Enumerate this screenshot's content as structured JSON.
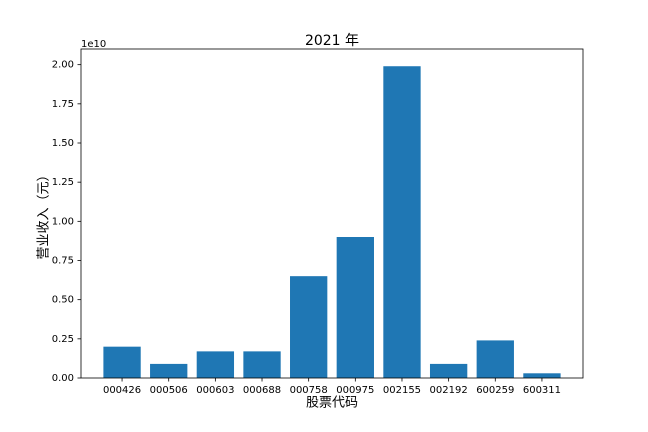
{
  "chart_data": {
    "type": "bar",
    "title": "2021 年",
    "x_label": "股票代码",
    "y_label": "营业收入（元）",
    "y_offset_label": "1e10",
    "categories": [
      "000426",
      "000506",
      "000603",
      "000688",
      "000758",
      "000975",
      "002155",
      "002192",
      "600259",
      "600311"
    ],
    "values": [
      0.2,
      0.09,
      0.17,
      0.17,
      0.65,
      0.9,
      1.99,
      0.09,
      0.24,
      0.03
    ],
    "color": "#1f77b4",
    "ylim": [
      0,
      2.1
    ],
    "yticks": [
      {
        "value": 0,
        "label": "0.00"
      },
      {
        "value": 0.25,
        "label": "0.25"
      },
      {
        "value": 0.5,
        "label": "0.50"
      },
      {
        "value": 0.75,
        "label": "0.75"
      },
      {
        "value": 1,
        "label": "1.00"
      },
      {
        "value": 1.25,
        "label": "1.25"
      },
      {
        "value": 1.5,
        "label": "1.50"
      },
      {
        "value": 1.75,
        "label": "1.75"
      },
      {
        "value": 2,
        "label": "2.00"
      }
    ],
    "grid": false
  }
}
